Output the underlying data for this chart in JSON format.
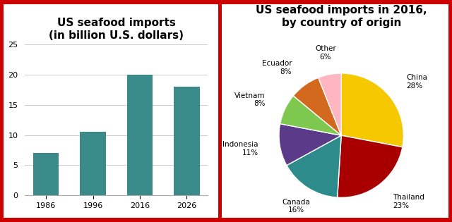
{
  "bar_years": [
    "1986",
    "1996",
    "2016",
    "2026"
  ],
  "bar_values": [
    7,
    10.5,
    20,
    18
  ],
  "bar_color": "#3a8a8a",
  "bar_title_line1": "US seafood imports",
  "bar_title_line2": "(in billion U.S. dollars)",
  "bar_ylim": [
    0,
    25
  ],
  "bar_yticks": [
    0,
    5,
    10,
    15,
    20,
    25
  ],
  "pie_title_line1": "US seafood imports in 2016,",
  "pie_title_line2": "by country of origin",
  "pie_labels": [
    "China",
    "Thailand",
    "Canada",
    "Indonesia",
    "Vietnam",
    "Ecuador",
    "Other"
  ],
  "pie_values": [
    28,
    23,
    16,
    11,
    8,
    8,
    6
  ],
  "pie_colors": [
    "#f5c800",
    "#a80000",
    "#2e8b8b",
    "#5b3a8a",
    "#7ec850",
    "#d2691e",
    "#ffb6c1"
  ],
  "background_color": "#ffffff",
  "border_color": "#cc0000",
  "title_fontsize": 11,
  "title_fontweight": "bold",
  "label_fontsize": 7.5
}
